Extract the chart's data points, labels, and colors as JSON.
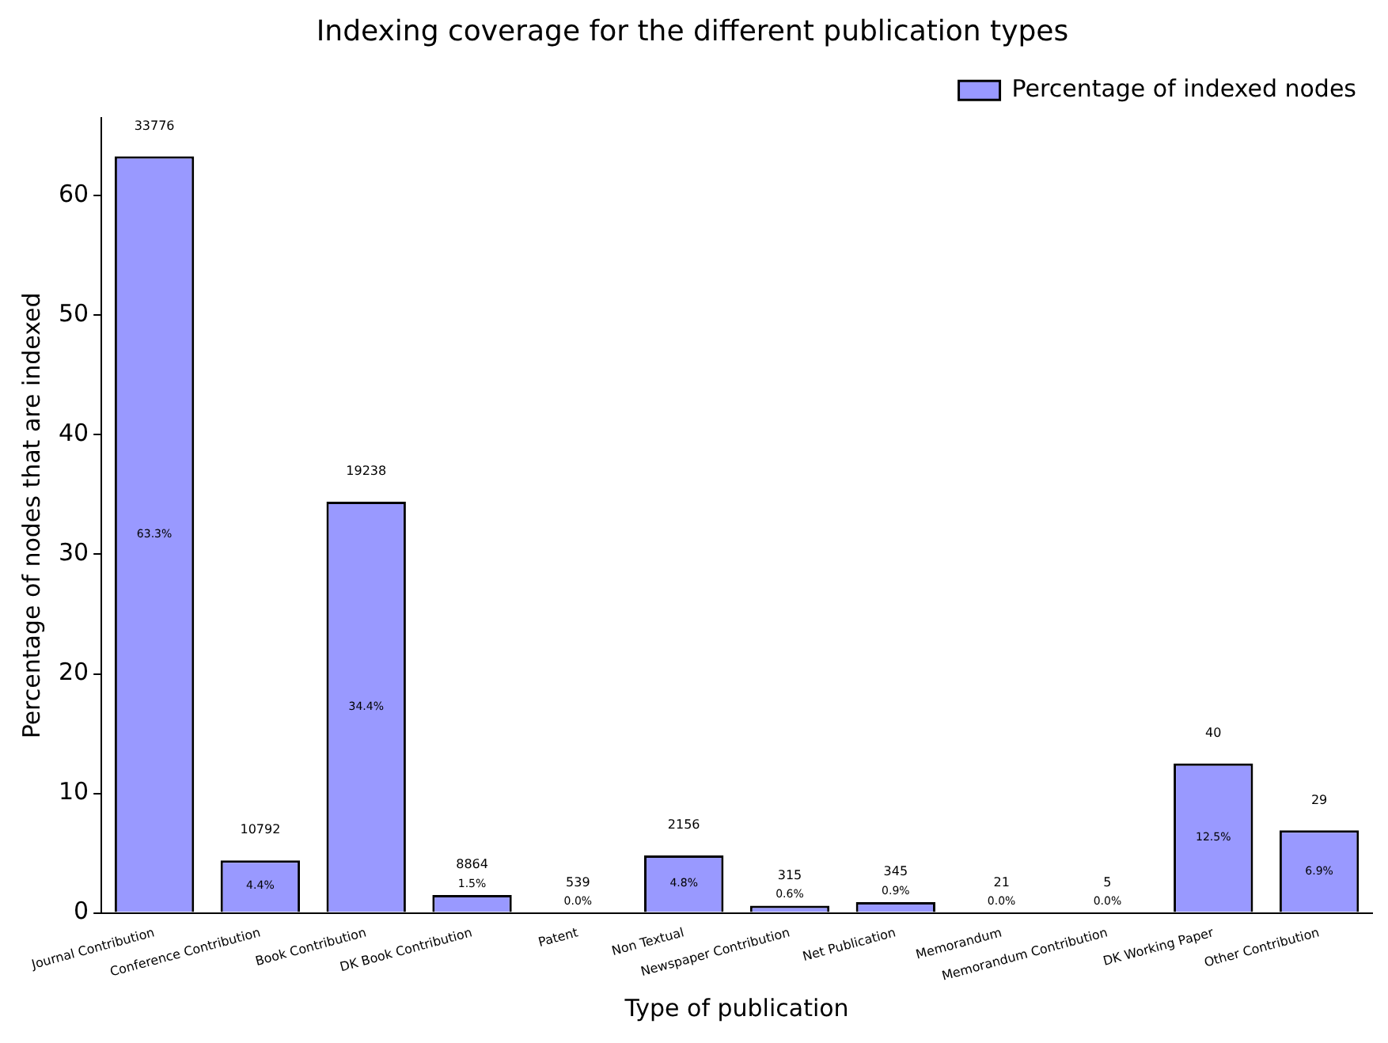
{
  "chart_data": {
    "type": "bar",
    "title": "Indexing coverage for the different publication types",
    "xlabel": "Type of publication",
    "ylabel": "Percentage of nodes that are indexed",
    "categories": [
      "Journal Contribution",
      "Conference Contribution",
      "Book Contribution",
      "DK Book Contribution",
      "Patent",
      "Non Textual",
      "Newspaper Contribution",
      "Net Publication",
      "Memorandum",
      "Memorandum Contribution",
      "DK Working Paper",
      "Other Contribution"
    ],
    "series": [
      {
        "name": "Percentage of indexed nodes",
        "color": "#9999ff",
        "values": [
          63.3,
          4.4,
          34.4,
          1.5,
          0.0,
          4.8,
          0.6,
          0.9,
          0.0,
          0.0,
          12.5,
          6.9
        ],
        "value_labels": [
          "63.3%",
          "4.4%",
          "34.4%",
          "1.5%",
          "0.0%",
          "4.8%",
          "0.6%",
          "0.9%",
          "0.0%",
          "0.0%",
          "12.5%",
          "6.9%"
        ]
      }
    ],
    "annotations": [
      {
        "text": "33776",
        "x": "Journal Contribution",
        "y": 63.3
      },
      {
        "text": "10792",
        "x": "Conference Contribution",
        "y": 4.4
      },
      {
        "text": "19238",
        "x": "Book Contribution",
        "y": 34.4
      },
      {
        "text": "8864",
        "x": "DK Book Contribution",
        "y": 1.5
      },
      {
        "text": "539",
        "x": "Patent",
        "y": 0.0
      },
      {
        "text": "2156",
        "x": "Non Textual",
        "y": 4.8
      },
      {
        "text": "315",
        "x": "Newspaper Contribution",
        "y": 0.6
      },
      {
        "text": "345",
        "x": "Net Publication",
        "y": 0.9
      },
      {
        "text": "21",
        "x": "Memorandum",
        "y": 0.0
      },
      {
        "text": "5",
        "x": "Memorandum Contribution",
        "y": 0.0
      },
      {
        "text": "40",
        "x": "DK Working Paper",
        "y": 12.5
      },
      {
        "text": "29",
        "x": "Other Contribution",
        "y": 6.9
      }
    ],
    "ylim": [
      0,
      66.5
    ],
    "yticks": [
      0,
      10,
      20,
      30,
      40,
      50,
      60
    ],
    "grid": false,
    "legend": "top right"
  }
}
